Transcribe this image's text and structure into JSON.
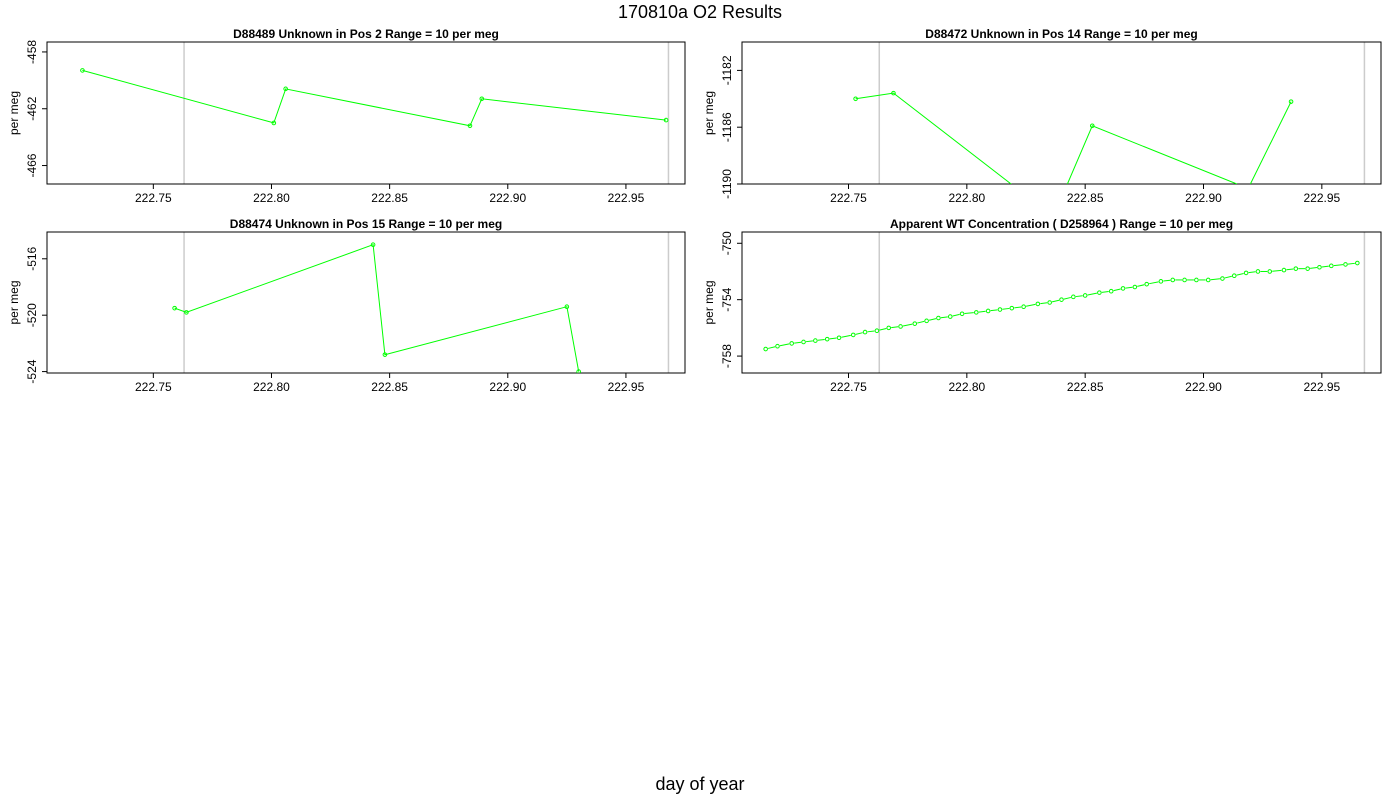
{
  "page": {
    "title": "170810a  O2 Results",
    "xlabel": "day of year"
  },
  "colors": {
    "series": "#00ff00",
    "refline": "#cccccc",
    "axis": "#000000"
  },
  "chart_data": [
    {
      "type": "line",
      "title": "D88489    Unknown in Pos 2          Range = 10 per meg",
      "ylabel": "per meg",
      "xlim": [
        222.705,
        222.975
      ],
      "ylim": [
        -467.3,
        -457.3
      ],
      "x_ticks": [
        "222.75",
        "222.80",
        "222.85",
        "222.90",
        "222.95"
      ],
      "y_ticks": [
        "-458",
        "-462",
        "-466"
      ],
      "vlines": [
        222.763,
        222.968
      ],
      "marker_only": false,
      "x": [
        222.72,
        222.801,
        222.806,
        222.884,
        222.889,
        222.967
      ],
      "y": [
        -459.3,
        -463.0,
        -460.6,
        -463.2,
        -461.3,
        -462.8
      ]
    },
    {
      "type": "line",
      "title": "D88472    Unknown in Pos 14          Range = 10 per meg",
      "ylabel": "per meg",
      "xlim": [
        222.705,
        222.975
      ],
      "ylim": [
        -1190.0,
        -1180.0
      ],
      "x_ticks": [
        "222.75",
        "222.80",
        "222.85",
        "222.90",
        "222.95"
      ],
      "y_ticks": [
        "-1182",
        "-1186",
        "-1190"
      ],
      "vlines": [
        222.763,
        222.968
      ],
      "marker_only": false,
      "x": [
        222.753,
        222.769,
        222.853,
        222.937
      ],
      "y": [
        -1184.0,
        -1183.6,
        -1185.9,
        -1184.2
      ],
      "segments": [
        [
          [
            222.753,
            -1184.0
          ],
          [
            222.769,
            -1183.6
          ],
          [
            222.8187,
            -1190.0
          ]
        ],
        [
          [
            222.8425,
            -1190.0
          ],
          [
            222.853,
            -1185.9
          ],
          [
            222.9141,
            -1190.0
          ]
        ],
        [
          [
            222.9198,
            -1190.0
          ],
          [
            222.937,
            -1184.2
          ]
        ]
      ]
    },
    {
      "type": "line",
      "title": "D88474    Unknown in Pos 15          Range = 10 per meg",
      "ylabel": "per meg",
      "xlim": [
        222.705,
        222.975
      ],
      "ylim": [
        -524.1,
        -514.1
      ],
      "x_ticks": [
        "222.75",
        "222.80",
        "222.85",
        "222.90",
        "222.95"
      ],
      "y_ticks": [
        "-516",
        "-520",
        "-524"
      ],
      "vlines": [
        222.763,
        222.968
      ],
      "marker_only": false,
      "x": [
        222.759,
        222.764,
        222.843,
        222.848,
        222.925,
        222.93
      ],
      "y": [
        -519.5,
        -519.8,
        -515.0,
        -522.8,
        -519.4,
        -524.0
      ]
    },
    {
      "type": "scatter",
      "title": "Apparent WT Concentration ( D258964 )          Range = 10 per meg",
      "ylabel": "per meg",
      "xlim": [
        222.705,
        222.975
      ],
      "ylim": [
        -759.2,
        -749.2
      ],
      "x_ticks": [
        "222.75",
        "222.80",
        "222.85",
        "222.90",
        "222.95"
      ],
      "y_ticks": [
        "-750",
        "-754",
        "-758"
      ],
      "vlines": [
        222.763,
        222.968
      ],
      "marker_only": true,
      "x": [
        222.715,
        222.72,
        222.726,
        222.731,
        222.736,
        222.741,
        222.746,
        222.752,
        222.757,
        222.762,
        222.767,
        222.772,
        222.778,
        222.783,
        222.788,
        222.793,
        222.798,
        222.804,
        222.809,
        222.814,
        222.819,
        222.824,
        222.83,
        222.835,
        222.84,
        222.845,
        222.85,
        222.856,
        222.861,
        222.866,
        222.871,
        222.876,
        222.882,
        222.887,
        222.892,
        222.897,
        222.902,
        222.908,
        222.913,
        222.918,
        222.923,
        222.928,
        222.934,
        222.939,
        222.944,
        222.949,
        222.954,
        222.96,
        222.965
      ],
      "y": [
        -757.5,
        -757.3,
        -757.1,
        -757.0,
        -756.9,
        -756.8,
        -756.7,
        -756.5,
        -756.3,
        -756.2,
        -756.0,
        -755.9,
        -755.7,
        -755.5,
        -755.3,
        -755.2,
        -755.0,
        -754.9,
        -754.8,
        -754.7,
        -754.6,
        -754.5,
        -754.3,
        -754.2,
        -754.0,
        -753.8,
        -753.7,
        -753.5,
        -753.4,
        -753.2,
        -753.1,
        -752.9,
        -752.7,
        -752.6,
        -752.6,
        -752.6,
        -752.6,
        -752.5,
        -752.3,
        -752.1,
        -752.0,
        -752.0,
        -751.9,
        -751.8,
        -751.8,
        -751.7,
        -751.6,
        -751.5,
        -751.4
      ]
    }
  ]
}
